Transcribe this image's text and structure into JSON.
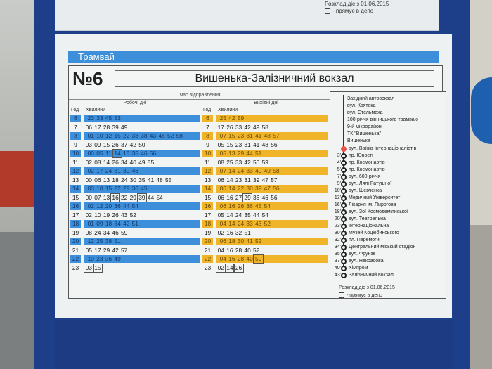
{
  "colors": {
    "weekday": "#3d8fd9",
    "weekend": "#f0b429",
    "board": "#1d3f8a"
  },
  "top_note": {
    "line1": "Розклад діє з 01.06.2015",
    "line2": "- прямує в депо"
  },
  "title": {
    "mode": "Трамвай",
    "number": "№6",
    "route": "Вишенька-Залізничний вокзал"
  },
  "table": {
    "caption": "Час відправлення",
    "weekday_label": "Робочі дні",
    "weekend_label": "Вихідні дні",
    "hour_header": "Год",
    "minutes_header": "Хвилини",
    "weekday": [
      {
        "h": "6",
        "m": [
          "23",
          "33",
          "45",
          "53"
        ]
      },
      {
        "h": "7",
        "m": [
          "06",
          "17",
          "28",
          "39",
          "49"
        ]
      },
      {
        "h": "8",
        "m": [
          "01",
          "10",
          "12",
          "15",
          "22",
          "33",
          "38",
          "43",
          "48",
          "52",
          "58"
        ]
      },
      {
        "h": "9",
        "m": [
          "03",
          "09",
          "15",
          "26",
          "37",
          "42",
          "50"
        ]
      },
      {
        "h": "10",
        "m": [
          "00",
          "05",
          "11",
          "14",
          "18",
          "35",
          "46",
          "56"
        ],
        "boxed": [
          "14"
        ]
      },
      {
        "h": "11",
        "m": [
          "02",
          "08",
          "14",
          "26",
          "34",
          "40",
          "49",
          "55"
        ]
      },
      {
        "h": "12",
        "m": [
          "02",
          "17",
          "24",
          "31",
          "39",
          "46"
        ]
      },
      {
        "h": "13",
        "m": [
          "00",
          "06",
          "13",
          "18",
          "24",
          "30",
          "35",
          "41",
          "48",
          "55"
        ]
      },
      {
        "h": "14",
        "m": [
          "03",
          "10",
          "15",
          "22",
          "29",
          "36",
          "45"
        ]
      },
      {
        "h": "15",
        "m": [
          "00",
          "07",
          "13",
          "16",
          "22",
          "29",
          "39",
          "44",
          "54"
        ],
        "boxed": [
          "16",
          "39"
        ]
      },
      {
        "h": "16",
        "m": [
          "02",
          "12",
          "20",
          "36",
          "44",
          "54"
        ]
      },
      {
        "h": "17",
        "m": [
          "02",
          "10",
          "19",
          "26",
          "43",
          "52"
        ]
      },
      {
        "h": "18",
        "m": [
          "01",
          "09",
          "18",
          "34",
          "42",
          "51"
        ]
      },
      {
        "h": "19",
        "m": [
          "08",
          "24",
          "34",
          "46",
          "59"
        ]
      },
      {
        "h": "20",
        "m": [
          "12",
          "25",
          "38",
          "51"
        ]
      },
      {
        "h": "21",
        "m": [
          "05",
          "17",
          "29",
          "42",
          "57"
        ]
      },
      {
        "h": "22",
        "m": [
          "10",
          "23",
          "36",
          "49"
        ]
      },
      {
        "h": "23",
        "m": [
          "03",
          "15"
        ],
        "boxed": [
          "03",
          "15"
        ]
      }
    ],
    "weekend": [
      {
        "h": "6",
        "m": [
          "25",
          "42",
          "59"
        ]
      },
      {
        "h": "7",
        "m": [
          "17",
          "26",
          "33",
          "42",
          "49",
          "58"
        ]
      },
      {
        "h": "8",
        "m": [
          "07",
          "15",
          "23",
          "31",
          "41",
          "48",
          "57"
        ]
      },
      {
        "h": "9",
        "m": [
          "05",
          "15",
          "23",
          "31",
          "41",
          "48",
          "56"
        ]
      },
      {
        "h": "10",
        "m": [
          "05",
          "13",
          "29",
          "44",
          "51"
        ]
      },
      {
        "h": "11",
        "m": [
          "08",
          "25",
          "33",
          "42",
          "50",
          "59"
        ]
      },
      {
        "h": "12",
        "m": [
          "07",
          "14",
          "24",
          "33",
          "40",
          "49",
          "58"
        ]
      },
      {
        "h": "13",
        "m": [
          "06",
          "14",
          "23",
          "31",
          "39",
          "47",
          "57"
        ]
      },
      {
        "h": "14",
        "m": [
          "06",
          "14",
          "22",
          "30",
          "39",
          "47",
          "56"
        ]
      },
      {
        "h": "15",
        "m": [
          "06",
          "16",
          "27",
          "29",
          "36",
          "46",
          "56"
        ],
        "boxed": [
          "29"
        ]
      },
      {
        "h": "16",
        "m": [
          "06",
          "16",
          "26",
          "36",
          "45",
          "54"
        ]
      },
      {
        "h": "17",
        "m": [
          "05",
          "14",
          "24",
          "35",
          "44",
          "54"
        ]
      },
      {
        "h": "18",
        "m": [
          "04",
          "14",
          "24",
          "33",
          "43",
          "52"
        ]
      },
      {
        "h": "19",
        "m": [
          "02",
          "16",
          "32",
          "51"
        ]
      },
      {
        "h": "20",
        "m": [
          "06",
          "18",
          "30",
          "41",
          "52"
        ]
      },
      {
        "h": "21",
        "m": [
          "04",
          "16",
          "28",
          "40",
          "52"
        ]
      },
      {
        "h": "22",
        "m": [
          "04",
          "16",
          "28",
          "40",
          "50"
        ],
        "boxed": [
          "50"
        ]
      },
      {
        "h": "23",
        "m": [
          "02",
          "14",
          "26"
        ],
        "boxed": [
          "02",
          "14",
          "26"
        ]
      }
    ]
  },
  "stops": {
    "previous": [
      "Західний автовокзал",
      "вул. Квятека",
      "вул. Стельмаха",
      "100-річчя вінницького трамваю",
      "9-й мікрорайон",
      "ТК \"Вишенька\"",
      "Вишенька"
    ],
    "current": "вул. Воїнів-Інтернаціоналістів",
    "next": [
      {
        "t": "3'",
        "n": "пр. Юності"
      },
      {
        "t": "4'",
        "n": "пр. Космонавтів"
      },
      {
        "t": "5'",
        "n": "пр. Космонавтів"
      },
      {
        "t": "7'",
        "n": "вул. 600-річчя"
      },
      {
        "t": "9'",
        "n": "вул. Лялі Ратушної"
      },
      {
        "t": "10'",
        "n": "вул. Шевченка"
      },
      {
        "t": "13'",
        "n": "Медичний Університет"
      },
      {
        "t": "16'",
        "n": "Лікарня ім. Пирогова"
      },
      {
        "t": "18'",
        "n": "вул. Зої Космодем'янської"
      },
      {
        "t": "20'",
        "n": "вул. Театральна"
      },
      {
        "t": "23'",
        "n": "Інтернаціональна"
      },
      {
        "t": "30'",
        "n": "Музей Коцюбинського"
      },
      {
        "t": "32'",
        "n": "пл. Перемоги"
      },
      {
        "t": "34'",
        "n": "Центральний міський стадіон"
      },
      {
        "t": "35'",
        "n": "вул. Фрунзе"
      },
      {
        "t": "37'",
        "n": "вул. Некрасова"
      },
      {
        "t": "40'",
        "n": "Хімпром"
      },
      {
        "t": "43'",
        "n": "Залізничний вокзал"
      }
    ],
    "note": "Розклад діє з 01.06.2015",
    "legend": "- прямує в депо"
  }
}
